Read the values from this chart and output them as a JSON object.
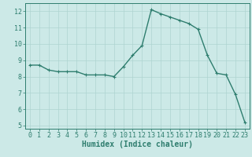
{
  "x": [
    0,
    1,
    2,
    3,
    4,
    5,
    6,
    7,
    8,
    9,
    10,
    11,
    12,
    13,
    14,
    15,
    16,
    17,
    18,
    19,
    20,
    21,
    22,
    23
  ],
  "y": [
    8.7,
    8.7,
    8.4,
    8.3,
    8.3,
    8.3,
    8.1,
    8.1,
    8.1,
    8.0,
    8.6,
    9.3,
    9.9,
    12.1,
    11.85,
    11.65,
    11.45,
    11.25,
    10.9,
    9.3,
    8.2,
    8.1,
    6.9,
    5.2
  ],
  "line_color": "#2e7d6e",
  "marker": "+",
  "marker_color": "#2e7d6e",
  "bg_color": "#cce9e7",
  "grid_color": "#aed4d1",
  "axis_color": "#2e7d6e",
  "tick_color": "#2e7d6e",
  "xlabel": "Humidex (Indice chaleur)",
  "xlim": [
    -0.5,
    23.5
  ],
  "ylim": [
    4.8,
    12.5
  ],
  "yticks": [
    5,
    6,
    7,
    8,
    9,
    10,
    11,
    12
  ],
  "xticks": [
    0,
    1,
    2,
    3,
    4,
    5,
    6,
    7,
    8,
    9,
    10,
    11,
    12,
    13,
    14,
    15,
    16,
    17,
    18,
    19,
    20,
    21,
    22,
    23
  ],
  "linewidth": 1.0,
  "markersize": 3.5,
  "xlabel_fontsize": 7,
  "tick_fontsize": 6
}
